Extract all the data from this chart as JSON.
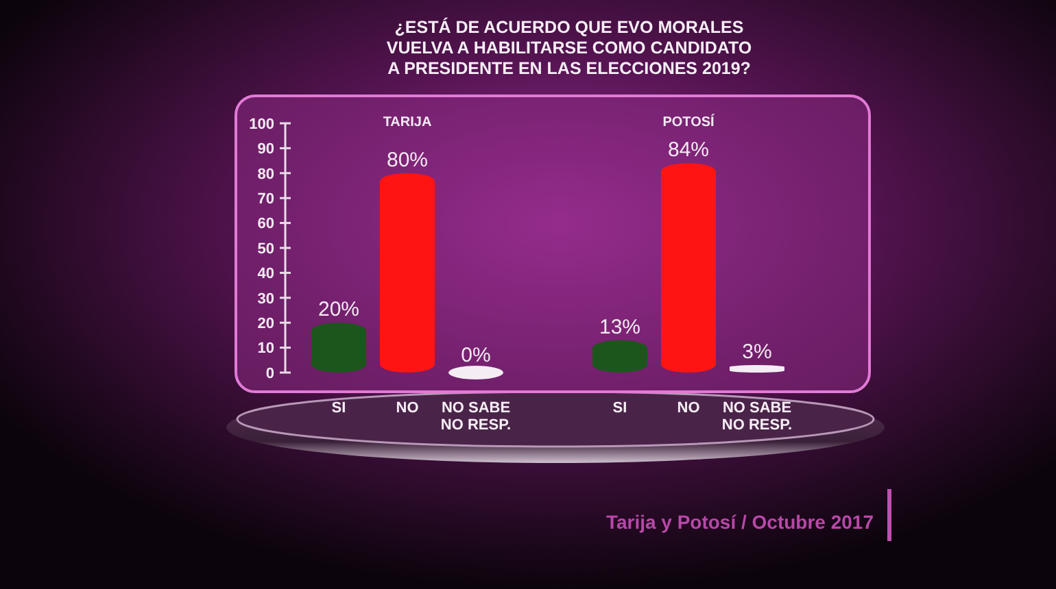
{
  "chart_data": [
    {
      "type": "bar",
      "title": "¿ESTÁ DE ACUERDO QUE EVO MORALES VUELVA A HABILITARSE COMO CANDIDATO A PRESIDENTE EN LAS ELECCIONES 2019?",
      "subtitle": "TARIJA",
      "categories": [
        "SI",
        "NO",
        "NO SABE NO RESP."
      ],
      "values": [
        20,
        80,
        0
      ],
      "colors": [
        "#1c561c",
        "#ff1414",
        "#f4eef4"
      ],
      "value_labels": [
        "20%",
        "80%",
        "0%"
      ],
      "ylim": [
        0,
        100
      ],
      "yticks": [
        0,
        10,
        20,
        30,
        40,
        50,
        60,
        70,
        80,
        90,
        100
      ],
      "annotations": [
        "Tarija y Potosí / Octubre 2017"
      ]
    },
    {
      "type": "bar",
      "subtitle": "POTOSÍ",
      "categories": [
        "SI",
        "NO",
        "NO SABE NO RESP."
      ],
      "values": [
        13,
        84,
        3
      ],
      "colors": [
        "#1c561c",
        "#ff1414",
        "#f4eef4"
      ],
      "value_labels": [
        "13%",
        "84%",
        "3%"
      ],
      "ylim": [
        0,
        100
      ],
      "tick_labels": "x"
    }
  ]
}
